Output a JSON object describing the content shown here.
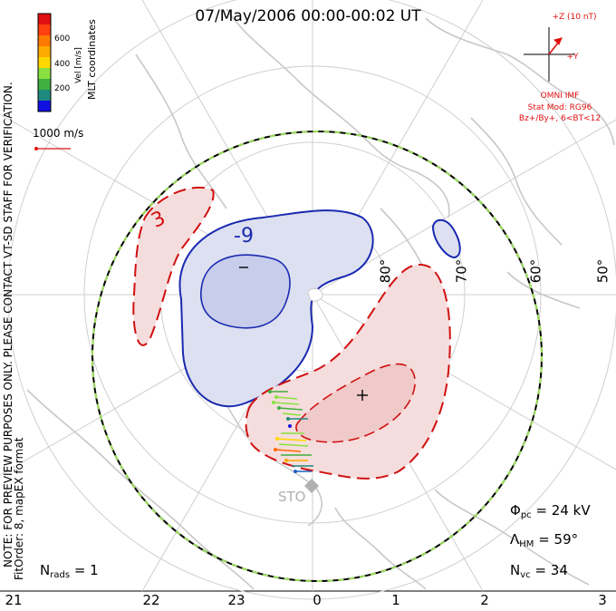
{
  "title": "07/May/2006 00:00-00:02 UT",
  "colorbar": {
    "label": "Vel [m/s]",
    "ticks": [
      "600",
      "400",
      "200"
    ],
    "colors": [
      "#e01010",
      "#ff6a00",
      "#ffaa00",
      "#ffd800",
      "#8ae040",
      "#3fb040",
      "#1f8a80",
      "#2060c0",
      "#1010e0"
    ]
  },
  "coordinates_label": "MLT coordinates",
  "reference_vector": "1000 m/s",
  "notice": {
    "line1": "NOTE: FOR PREVIEW PURPOSES ONLY. PLEASE CONTACT VT-SD STAFF FOR VERIFICATION.",
    "line2": "FitOrder: 8, mapEX format"
  },
  "imf": {
    "z_label": "+Z (10 nT)",
    "y_label": "+Y",
    "source": "OMNI IMF",
    "model": "Stat Mod: RG96",
    "condition": "Bz+/By+, 6<BT<12"
  },
  "contours": {
    "negative_label": "-9",
    "positive_label": "3",
    "min_marker": "−",
    "max_marker": "+"
  },
  "latitudes": [
    "80°",
    "70°",
    "60°",
    "50°"
  ],
  "station": "STO",
  "stats": {
    "phi_symbol": "Φ",
    "phi_sub": "pc",
    "phi_value": "= 24 kV",
    "lambda_symbol": "Λ",
    "lambda_sub": "HM",
    "lambda_value": "= 59°",
    "nvc_symbol": "N",
    "nvc_sub": "vc",
    "nvc_value": "= 34",
    "nrads_symbol": "N",
    "nrads_sub": "rads",
    "nrads_value": "= 1"
  },
  "mlt_labels": [
    "21",
    "22",
    "23",
    "0",
    "1",
    "2",
    "3"
  ]
}
